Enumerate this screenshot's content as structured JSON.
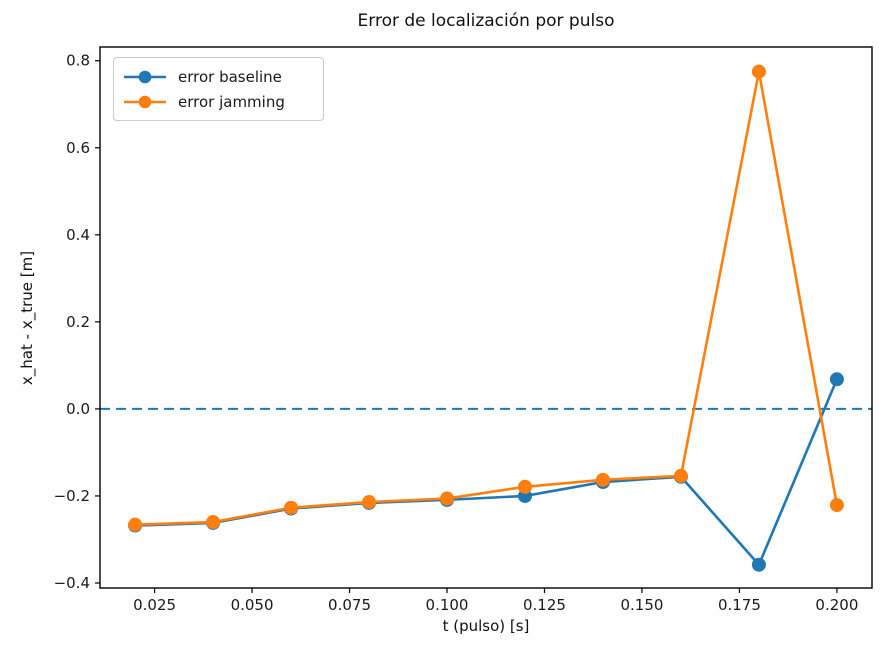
{
  "figure": {
    "background": "#ffffff",
    "spine_color": "#000000",
    "tick_color": "#1a1a1a"
  },
  "chart_data": {
    "type": "line",
    "title": "Error de localización por pulso",
    "xlabel": "t (pulso) [s]",
    "ylabel": "x_hat - x_true [m]",
    "x": [
      0.02,
      0.04,
      0.06,
      0.08,
      0.1,
      0.12,
      0.14,
      0.16,
      0.18,
      0.2
    ],
    "series": [
      {
        "name": "error baseline",
        "color": "#1f77b4",
        "marker": "circle",
        "values": [
          -0.268,
          -0.262,
          -0.229,
          -0.216,
          -0.209,
          -0.2,
          -0.168,
          -0.156,
          -0.358,
          0.068
        ]
      },
      {
        "name": "error jamming",
        "color": "#ff7f0e",
        "marker": "circle",
        "values": [
          -0.266,
          -0.26,
          -0.227,
          -0.214,
          -0.206,
          -0.179,
          -0.163,
          -0.154,
          0.775,
          -0.221
        ]
      }
    ],
    "zero_line": {
      "y": 0.0,
      "color": "#1f77b4",
      "style": "dashed"
    },
    "xlim": [
      0.011,
      0.209
    ],
    "ylim": [
      -0.4115,
      0.8315
    ],
    "xticks": {
      "values": [
        0.025,
        0.05,
        0.075,
        0.1,
        0.125,
        0.15,
        0.175,
        0.2
      ],
      "labels": [
        "0.025",
        "0.050",
        "0.075",
        "0.100",
        "0.125",
        "0.150",
        "0.175",
        "0.200"
      ]
    },
    "yticks": {
      "values": [
        -0.4,
        -0.2,
        0.0,
        0.2,
        0.4,
        0.6,
        0.8
      ],
      "labels": [
        "−0.4",
        "−0.2",
        "0.0",
        "0.2",
        "0.4",
        "0.6",
        "0.8"
      ]
    },
    "grid": false,
    "legend": {
      "position": "upper left"
    }
  }
}
